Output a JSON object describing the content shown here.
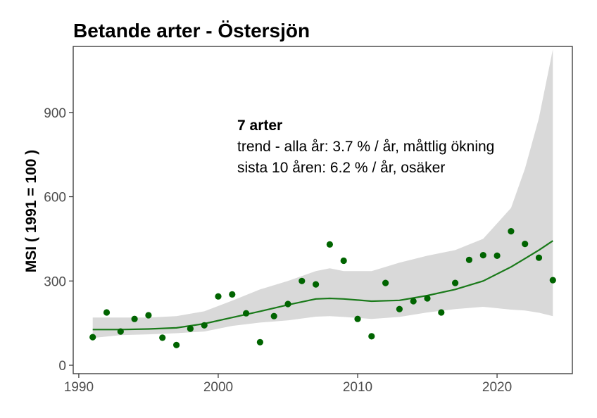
{
  "chart_data": {
    "type": "scatter",
    "title": "Betande arter - Östersjön",
    "xlabel": "",
    "ylabel": "MSI ( 1991 = 100 )",
    "xlim": [
      1989.6,
      2025.4
    ],
    "ylim": [
      -30,
      1135
    ],
    "xticks": [
      1990,
      2000,
      2010,
      2020
    ],
    "yticks": [
      0,
      300,
      600,
      900
    ],
    "grid": false,
    "colors": {
      "points": "#006400",
      "trend": "#1a7a1a",
      "band": "#d9d9d9"
    },
    "annotations": [
      {
        "text": "7 arter",
        "bold": true
      },
      {
        "text": "trend - alla år: 3.7 % / år, måttlig ökning",
        "bold": false
      },
      {
        "text": "sista 10 åren: 6.2 % / år, osäker",
        "bold": false
      }
    ],
    "points": {
      "x": [
        1991,
        1992,
        1993,
        1994,
        1995,
        1996,
        1997,
        1998,
        1999,
        2000,
        2001,
        2002,
        2003,
        2004,
        2005,
        2006,
        2007,
        2008,
        2009,
        2010,
        2011,
        2012,
        2013,
        2014,
        2015,
        2016,
        2017,
        2018,
        2019,
        2020,
        2021,
        2022,
        2023,
        2024
      ],
      "y": [
        100,
        188,
        120,
        165,
        178,
        98,
        72,
        130,
        142,
        245,
        252,
        185,
        82,
        175,
        218,
        300,
        288,
        430,
        372,
        165,
        103,
        293,
        200,
        228,
        238,
        188,
        293,
        375,
        392,
        390,
        477,
        432,
        383,
        303
      ]
    },
    "trend": {
      "x": [
        1991,
        1993,
        1995,
        1997,
        1999,
        2001,
        2003,
        2005,
        2007,
        2008,
        2009,
        2011,
        2013,
        2015,
        2017,
        2019,
        2021,
        2022,
        2023,
        2024
      ],
      "y": [
        127,
        127,
        129,
        133,
        148,
        170,
        192,
        215,
        236,
        238,
        236,
        228,
        231,
        248,
        270,
        300,
        350,
        380,
        410,
        443
      ]
    },
    "band": {
      "x": [
        1991,
        1993,
        1995,
        1997,
        1999,
        2001,
        2003,
        2005,
        2007,
        2008,
        2009,
        2011,
        2013,
        2015,
        2017,
        2019,
        2021,
        2022,
        2023,
        2024
      ],
      "upper": [
        170,
        170,
        170,
        175,
        192,
        230,
        270,
        300,
        335,
        345,
        335,
        335,
        365,
        390,
        410,
        450,
        560,
        700,
        880,
        1125
      ],
      "lower": [
        97,
        107,
        110,
        114,
        120,
        140,
        152,
        160,
        173,
        175,
        172,
        165,
        172,
        188,
        200,
        208,
        198,
        195,
        187,
        175
      ]
    }
  }
}
